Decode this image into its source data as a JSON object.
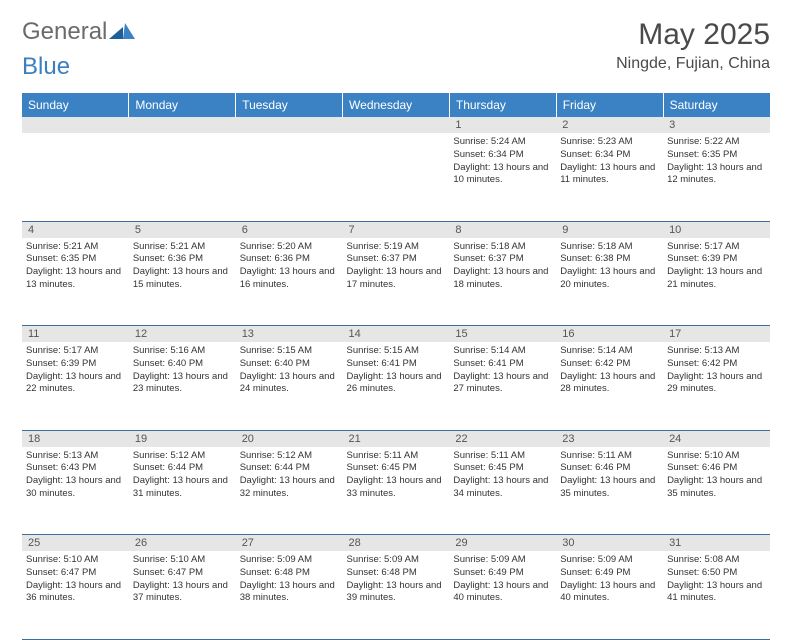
{
  "logo": {
    "part1": "General",
    "part2": "Blue"
  },
  "title": "May 2025",
  "location": "Ningde, Fujian, China",
  "weekdays": [
    "Sunday",
    "Monday",
    "Tuesday",
    "Wednesday",
    "Thursday",
    "Friday",
    "Saturday"
  ],
  "colors": {
    "header_bg": "#3b82c4",
    "header_text": "#ffffff",
    "daynum_bg": "#e6e6e6",
    "cell_border": "#3b6fa0",
    "logo_gray": "#6b6b6b",
    "logo_blue": "#3b7fbf",
    "text": "#333333"
  },
  "weeks": [
    {
      "nums": [
        "",
        "",
        "",
        "",
        "1",
        "2",
        "3"
      ],
      "cells": [
        null,
        null,
        null,
        null,
        {
          "sunrise": "5:24 AM",
          "sunset": "6:34 PM",
          "daylight": "13 hours and 10 minutes."
        },
        {
          "sunrise": "5:23 AM",
          "sunset": "6:34 PM",
          "daylight": "13 hours and 11 minutes."
        },
        {
          "sunrise": "5:22 AM",
          "sunset": "6:35 PM",
          "daylight": "13 hours and 12 minutes."
        }
      ]
    },
    {
      "nums": [
        "4",
        "5",
        "6",
        "7",
        "8",
        "9",
        "10"
      ],
      "cells": [
        {
          "sunrise": "5:21 AM",
          "sunset": "6:35 PM",
          "daylight": "13 hours and 13 minutes."
        },
        {
          "sunrise": "5:21 AM",
          "sunset": "6:36 PM",
          "daylight": "13 hours and 15 minutes."
        },
        {
          "sunrise": "5:20 AM",
          "sunset": "6:36 PM",
          "daylight": "13 hours and 16 minutes."
        },
        {
          "sunrise": "5:19 AM",
          "sunset": "6:37 PM",
          "daylight": "13 hours and 17 minutes."
        },
        {
          "sunrise": "5:18 AM",
          "sunset": "6:37 PM",
          "daylight": "13 hours and 18 minutes."
        },
        {
          "sunrise": "5:18 AM",
          "sunset": "6:38 PM",
          "daylight": "13 hours and 20 minutes."
        },
        {
          "sunrise": "5:17 AM",
          "sunset": "6:39 PM",
          "daylight": "13 hours and 21 minutes."
        }
      ]
    },
    {
      "nums": [
        "11",
        "12",
        "13",
        "14",
        "15",
        "16",
        "17"
      ],
      "cells": [
        {
          "sunrise": "5:17 AM",
          "sunset": "6:39 PM",
          "daylight": "13 hours and 22 minutes."
        },
        {
          "sunrise": "5:16 AM",
          "sunset": "6:40 PM",
          "daylight": "13 hours and 23 minutes."
        },
        {
          "sunrise": "5:15 AM",
          "sunset": "6:40 PM",
          "daylight": "13 hours and 24 minutes."
        },
        {
          "sunrise": "5:15 AM",
          "sunset": "6:41 PM",
          "daylight": "13 hours and 26 minutes."
        },
        {
          "sunrise": "5:14 AM",
          "sunset": "6:41 PM",
          "daylight": "13 hours and 27 minutes."
        },
        {
          "sunrise": "5:14 AM",
          "sunset": "6:42 PM",
          "daylight": "13 hours and 28 minutes."
        },
        {
          "sunrise": "5:13 AM",
          "sunset": "6:42 PM",
          "daylight": "13 hours and 29 minutes."
        }
      ]
    },
    {
      "nums": [
        "18",
        "19",
        "20",
        "21",
        "22",
        "23",
        "24"
      ],
      "cells": [
        {
          "sunrise": "5:13 AM",
          "sunset": "6:43 PM",
          "daylight": "13 hours and 30 minutes."
        },
        {
          "sunrise": "5:12 AM",
          "sunset": "6:44 PM",
          "daylight": "13 hours and 31 minutes."
        },
        {
          "sunrise": "5:12 AM",
          "sunset": "6:44 PM",
          "daylight": "13 hours and 32 minutes."
        },
        {
          "sunrise": "5:11 AM",
          "sunset": "6:45 PM",
          "daylight": "13 hours and 33 minutes."
        },
        {
          "sunrise": "5:11 AM",
          "sunset": "6:45 PM",
          "daylight": "13 hours and 34 minutes."
        },
        {
          "sunrise": "5:11 AM",
          "sunset": "6:46 PM",
          "daylight": "13 hours and 35 minutes."
        },
        {
          "sunrise": "5:10 AM",
          "sunset": "6:46 PM",
          "daylight": "13 hours and 35 minutes."
        }
      ]
    },
    {
      "nums": [
        "25",
        "26",
        "27",
        "28",
        "29",
        "30",
        "31"
      ],
      "cells": [
        {
          "sunrise": "5:10 AM",
          "sunset": "6:47 PM",
          "daylight": "13 hours and 36 minutes."
        },
        {
          "sunrise": "5:10 AM",
          "sunset": "6:47 PM",
          "daylight": "13 hours and 37 minutes."
        },
        {
          "sunrise": "5:09 AM",
          "sunset": "6:48 PM",
          "daylight": "13 hours and 38 minutes."
        },
        {
          "sunrise": "5:09 AM",
          "sunset": "6:48 PM",
          "daylight": "13 hours and 39 minutes."
        },
        {
          "sunrise": "5:09 AM",
          "sunset": "6:49 PM",
          "daylight": "13 hours and 40 minutes."
        },
        {
          "sunrise": "5:09 AM",
          "sunset": "6:49 PM",
          "daylight": "13 hours and 40 minutes."
        },
        {
          "sunrise": "5:08 AM",
          "sunset": "6:50 PM",
          "daylight": "13 hours and 41 minutes."
        }
      ]
    }
  ],
  "labels": {
    "sunrise": "Sunrise:",
    "sunset": "Sunset:",
    "daylight": "Daylight:"
  }
}
